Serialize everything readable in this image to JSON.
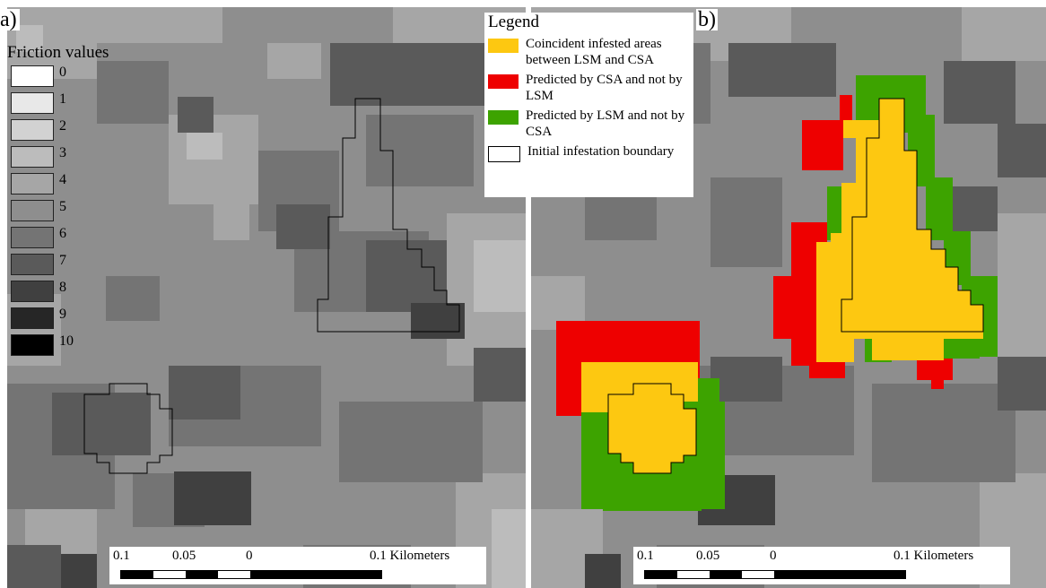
{
  "panels": {
    "a": {
      "label": "a)"
    },
    "b": {
      "label": "b)"
    }
  },
  "friction_legend": {
    "title": "Friction values",
    "items": [
      {
        "label": "0",
        "color": "#ffffff"
      },
      {
        "label": "1",
        "color": "#e8e8e8"
      },
      {
        "label": "2",
        "color": "#d2d2d2"
      },
      {
        "label": "3",
        "color": "#bcbcbc"
      },
      {
        "label": "4",
        "color": "#a6a6a6"
      },
      {
        "label": "5",
        "color": "#8e8e8e"
      },
      {
        "label": "6",
        "color": "#747474"
      },
      {
        "label": "7",
        "color": "#5a5a5a"
      },
      {
        "label": "8",
        "color": "#404040"
      },
      {
        "label": "9",
        "color": "#262626"
      },
      {
        "label": "10",
        "color": "#000000"
      }
    ]
  },
  "legend_b": {
    "title": "Legend",
    "items": [
      {
        "label": "Coincident infested areas between LSM and CSA",
        "color": "#fdc811"
      },
      {
        "label": "Predicted by CSA and not by LSM",
        "color": "#ee0000"
      },
      {
        "label": "Predicted by LSM and not by CSA",
        "color": "#3da300"
      },
      {
        "label": "Initial infestation boundary",
        "color": "#ffffff"
      }
    ]
  },
  "scalebar": {
    "ticks": [
      "0.1",
      "0.05",
      "0",
      "0.1 Kilometers"
    ]
  }
}
